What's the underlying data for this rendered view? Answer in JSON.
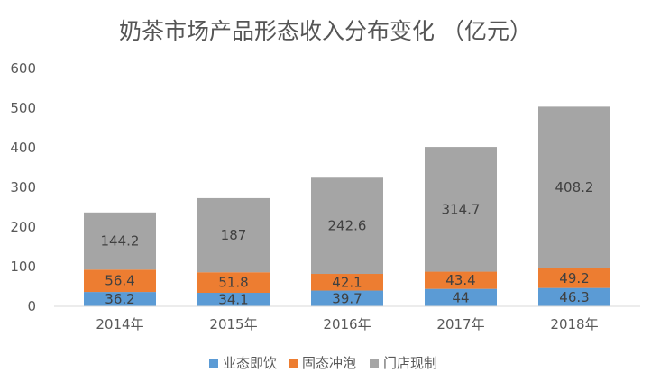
{
  "chart_data": {
    "type": "bar",
    "stacked": true,
    "title": "奶茶市场产品形态收入分布变化 （亿元）",
    "categories": [
      "2014年",
      "2015年",
      "2016年",
      "2017年",
      "2018年"
    ],
    "series": [
      {
        "name": "业态即饮",
        "color": "#5b9bd5",
        "values": [
          36.2,
          34.1,
          39.7,
          44,
          46.3
        ],
        "labels": [
          "36.2",
          "34.1",
          "39.7",
          "44",
          "46.3"
        ]
      },
      {
        "name": "固态冲泡",
        "color": "#ed7d31",
        "values": [
          56.4,
          51.8,
          42.1,
          43.4,
          49.2
        ],
        "labels": [
          "56.4",
          "51.8",
          "42.1",
          "43.4",
          "49.2"
        ]
      },
      {
        "name": "门店现制",
        "color": "#a5a5a5",
        "values": [
          144.2,
          187,
          242.6,
          314.7,
          408.2
        ],
        "labels": [
          "144.2",
          "187",
          "242.6",
          "314.7",
          "408.2"
        ]
      }
    ],
    "ylim": [
      0,
      600
    ],
    "yticks": [
      0,
      100,
      200,
      300,
      400,
      500,
      600
    ],
    "ytick_labels": [
      "0",
      "100",
      "200",
      "300",
      "400",
      "500",
      "600"
    ],
    "grid": false,
    "legend_position": "bottom",
    "xlabel": "",
    "ylabel": ""
  }
}
